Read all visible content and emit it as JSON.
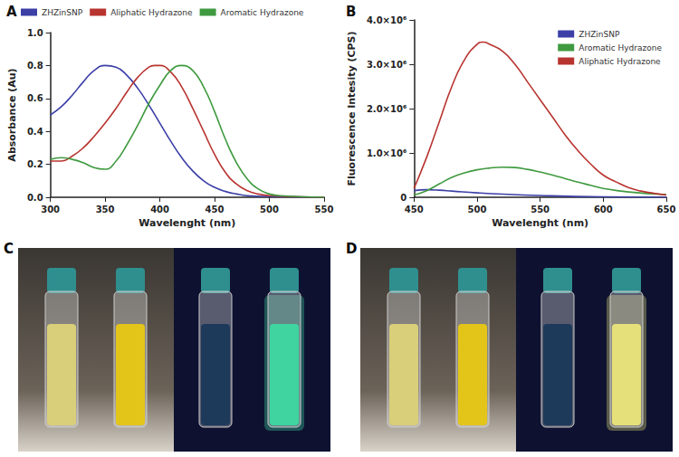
{
  "chart_data": [
    {
      "type": "line",
      "title": "A",
      "x_label": "Wavelenght (nm)",
      "y_label": "Absorbance (Au)",
      "xlim": [
        300,
        550
      ],
      "xticks": [
        300,
        350,
        400,
        450,
        500,
        550
      ],
      "ylim": [
        0,
        1.0
      ],
      "yticks": [
        {
          "value": 0,
          "label": "0.0"
        },
        {
          "value": 0.2,
          "label": "0.2"
        },
        {
          "value": 0.4,
          "label": "0.4"
        },
        {
          "value": 0.6,
          "label": "0.6"
        },
        {
          "value": 0.8,
          "label": "0.8"
        },
        {
          "value": 1.0,
          "label": "1.0"
        }
      ],
      "grid": false,
      "legend": "top",
      "series": [
        {
          "name": "ZHZinSNP",
          "color": "#3b3fa6",
          "x": [
            300,
            310,
            320,
            330,
            340,
            350,
            360,
            370,
            380,
            390,
            400,
            410,
            420,
            430,
            440,
            450,
            460,
            470,
            480,
            500,
            550
          ],
          "values": [
            0.5,
            0.55,
            0.62,
            0.7,
            0.77,
            0.8,
            0.79,
            0.74,
            0.66,
            0.56,
            0.45,
            0.34,
            0.24,
            0.16,
            0.1,
            0.06,
            0.035,
            0.02,
            0.01,
            0.005,
            0
          ]
        },
        {
          "name": "Aliphatic Hydrazone",
          "color": "#b8342f",
          "x": [
            300,
            310,
            320,
            330,
            340,
            350,
            360,
            370,
            380,
            390,
            395,
            400,
            410,
            420,
            430,
            440,
            450,
            460,
            470,
            480,
            490,
            500,
            550
          ],
          "values": [
            0.22,
            0.22,
            0.25,
            0.3,
            0.37,
            0.45,
            0.54,
            0.64,
            0.73,
            0.79,
            0.8,
            0.8,
            0.76,
            0.67,
            0.54,
            0.4,
            0.26,
            0.15,
            0.08,
            0.04,
            0.02,
            0.01,
            0
          ]
        },
        {
          "name": "Aromatic Hydrazone",
          "color": "#3f9a3f",
          "x": [
            300,
            310,
            320,
            330,
            340,
            350,
            360,
            370,
            380,
            390,
            400,
            410,
            420,
            430,
            440,
            450,
            460,
            470,
            480,
            490,
            500,
            510,
            550
          ],
          "values": [
            0.23,
            0.24,
            0.23,
            0.21,
            0.18,
            0.17,
            0.22,
            0.32,
            0.44,
            0.57,
            0.68,
            0.77,
            0.8,
            0.77,
            0.67,
            0.52,
            0.35,
            0.21,
            0.11,
            0.05,
            0.02,
            0.01,
            0
          ]
        }
      ]
    },
    {
      "type": "line",
      "title": "B",
      "x_label": "Wavelenght (nm)",
      "y_label": "Fluorescence Intesity (CPS)",
      "xlim": [
        450,
        650
      ],
      "xticks": [
        450,
        500,
        550,
        600,
        650
      ],
      "ylim": [
        0,
        4000000
      ],
      "yticks": [
        0,
        {
          "value": 1000000,
          "label": "1.0×10⁶"
        },
        {
          "value": 2000000,
          "label": "2.0×10⁶"
        },
        {
          "value": 3000000,
          "label": "3.0×10⁶"
        },
        {
          "value": 4000000,
          "label": "4.0×10⁶"
        }
      ],
      "grid": false,
      "legend": "upper right",
      "series": [
        {
          "name": "ZHZinSNP",
          "color": "#3b3fa6",
          "x": [
            450,
            460,
            470,
            480,
            500,
            520,
            550,
            600,
            650
          ],
          "values": [
            150000,
            170000,
            160000,
            140000,
            100000,
            70000,
            40000,
            10000,
            0
          ]
        },
        {
          "name": "Aromatic Hydrazone",
          "color": "#3f9a3f",
          "x": [
            450,
            460,
            470,
            480,
            490,
            500,
            510,
            520,
            530,
            540,
            550,
            560,
            570,
            580,
            590,
            600,
            620,
            650
          ],
          "values": [
            50000,
            150000,
            300000,
            450000,
            550000,
            620000,
            660000,
            680000,
            670000,
            630000,
            570000,
            500000,
            420000,
            340000,
            270000,
            200000,
            120000,
            60000
          ]
        },
        {
          "name": "Aliphatic Hydrazone",
          "color": "#b8342f",
          "x": [
            450,
            460,
            470,
            480,
            490,
            500,
            505,
            510,
            520,
            530,
            540,
            550,
            560,
            570,
            580,
            590,
            600,
            610,
            620,
            630,
            640,
            650
          ],
          "values": [
            200000,
            900000,
            1700000,
            2500000,
            3100000,
            3450000,
            3500000,
            3450000,
            3300000,
            3000000,
            2600000,
            2200000,
            1800000,
            1400000,
            1050000,
            750000,
            500000,
            350000,
            220000,
            140000,
            90000,
            50000
          ]
        }
      ]
    }
  ],
  "panels": [
    {
      "label": "C"
    },
    {
      "label": "D"
    }
  ]
}
